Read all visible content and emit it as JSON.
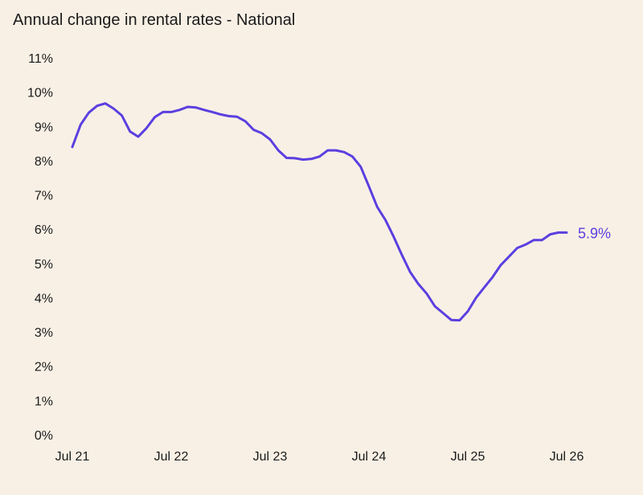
{
  "chart_data": {
    "type": "line",
    "title": "Annual change in rental rates - National",
    "xlabel": "",
    "ylabel": "",
    "x_ticks": [
      "Jul 21",
      "Jul 22",
      "Jul 23",
      "Jul 24",
      "Jul 25",
      "Jul 26"
    ],
    "y_ticks": [
      "0%",
      "1%",
      "2%",
      "3%",
      "4%",
      "5%",
      "6%",
      "7%",
      "8%",
      "9%",
      "10%",
      "11%"
    ],
    "ylim": [
      0,
      11
    ],
    "x_start_month": "Jul 21",
    "grid": false,
    "series": [
      {
        "color": "#5b3fe0",
        "end_label": "5.9%",
        "values": [
          8.4,
          9.05,
          9.4,
          9.6,
          9.67,
          9.52,
          9.32,
          8.85,
          8.7,
          8.95,
          9.27,
          9.42,
          9.42,
          9.48,
          9.57,
          9.55,
          9.48,
          9.42,
          9.35,
          9.3,
          9.28,
          9.15,
          8.9,
          8.8,
          8.62,
          8.3,
          8.08,
          8.07,
          8.03,
          8.05,
          8.12,
          8.3,
          8.3,
          8.25,
          8.12,
          7.82,
          7.25,
          6.65,
          6.27,
          5.78,
          5.25,
          4.75,
          4.4,
          4.12,
          3.75,
          3.55,
          3.35,
          3.34,
          3.6,
          4.0,
          4.3,
          4.6,
          4.95,
          5.2,
          5.45,
          5.55,
          5.68,
          5.68,
          5.85,
          5.9,
          5.9
        ]
      }
    ]
  }
}
